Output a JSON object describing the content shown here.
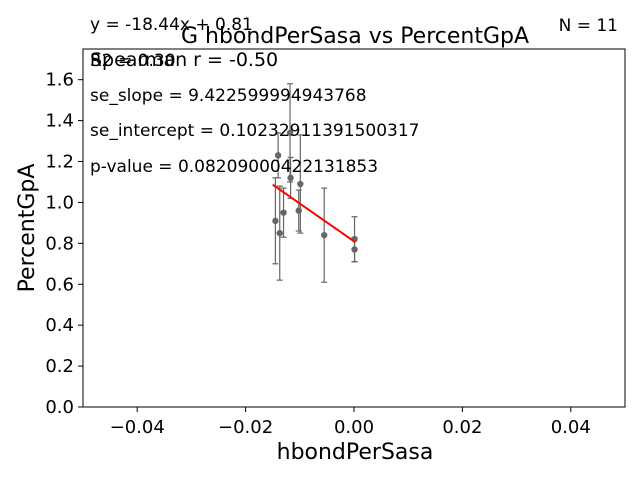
{
  "chart_data": {
    "type": "scatter",
    "title": "G hbondPerSasa vs PercentGpA",
    "xlabel": "hbondPerSasa",
    "ylabel": "PercentGpA",
    "xlim": [
      -0.05,
      0.05
    ],
    "ylim": [
      0.0,
      1.75
    ],
    "xticks": [
      -0.04,
      -0.02,
      0.0,
      0.02,
      0.04
    ],
    "xtick_labels": [
      "−0.04",
      "−0.02",
      "0.00",
      "0.02",
      "0.04"
    ],
    "yticks": [
      0.0,
      0.2,
      0.4,
      0.6,
      0.8,
      1.0,
      1.2,
      1.4,
      1.6
    ],
    "ytick_labels": [
      "0.0",
      "0.2",
      "0.4",
      "0.6",
      "0.8",
      "1.0",
      "1.2",
      "1.4",
      "1.6"
    ],
    "grid": false,
    "point_color": "#666666",
    "fit_color": "#ff0000",
    "points": [
      {
        "x": -0.0145,
        "y": 0.91,
        "err": 0.21
      },
      {
        "x": -0.014,
        "y": 1.23,
        "err": 0.11
      },
      {
        "x": -0.0137,
        "y": 0.85,
        "err": 0.23
      },
      {
        "x": -0.013,
        "y": 0.95,
        "err": 0.12
      },
      {
        "x": -0.0118,
        "y": 1.34,
        "err": 0.24
      },
      {
        "x": -0.0117,
        "y": 1.12,
        "err": 0.1
      },
      {
        "x": -0.0102,
        "y": 0.96,
        "err": 0.1
      },
      {
        "x": -0.0099,
        "y": 1.09,
        "err": 0.24
      },
      {
        "x": -0.0055,
        "y": 0.84,
        "err": 0.23
      },
      {
        "x": 0.0001,
        "y": 0.82,
        "err": 0.11
      },
      {
        "x": 0.0001,
        "y": 0.77,
        "err": 0.06
      }
    ],
    "fit_line": {
      "x": [
        -0.015,
        0.0002
      ],
      "slope": -18.44,
      "intercept": 0.81
    },
    "annotations": {
      "equation": "y = -18.44x + 0.81",
      "r2": "R2 = 0.30",
      "spearman": "Spearman r = -0.50",
      "se_slope": "se_slope = 9.422599994943768",
      "se_intercept": "se_intercept = 0.10232911391500317",
      "p_value": "p-value = 0.08209000422131853",
      "n": "N = 11"
    }
  }
}
